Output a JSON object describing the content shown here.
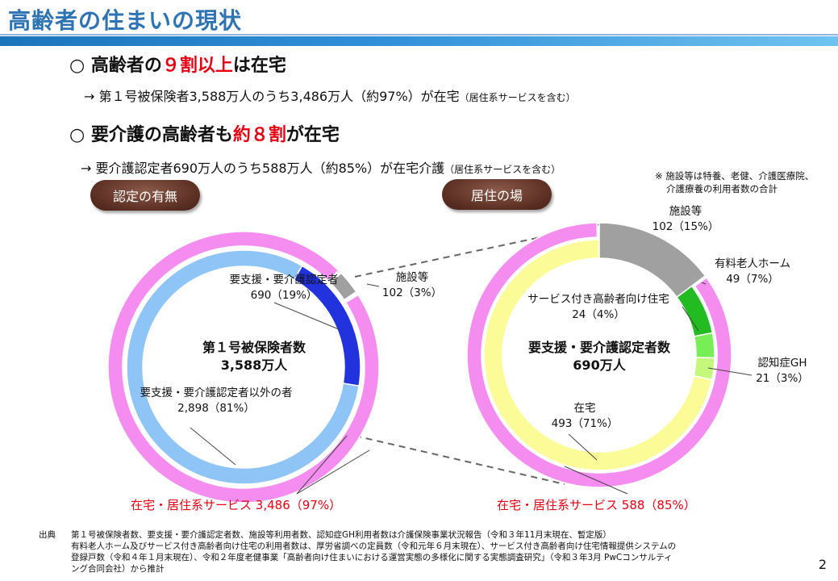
{
  "page": {
    "title": "高齢者の住まいの現状",
    "page_number": "2"
  },
  "point1": {
    "bullet": "○",
    "heading_pre": "高齢者の",
    "heading_red": "９割以上",
    "heading_post": "は在宅",
    "sub_text": "→ 第１号被保険者3,588万人のうち3,486万人（約97%）が在宅",
    "sub_note": "（居住系サービスを含む）"
  },
  "point2": {
    "bullet": "○",
    "heading_pre": "要介護の高齢者も",
    "heading_red": "約８割",
    "heading_post": "が在宅",
    "sub_text": "→ 要介護認定者690万人のうち588万人（約85%）が在宅介護",
    "sub_note": "（居住系サービスを含む）"
  },
  "note": {
    "line1": "※ 施設等は特養、老健、介護医療院、",
    "line2": "介護療養の利用者数の合計"
  },
  "pills": {
    "left": "認定の有無",
    "right": "居住の場"
  },
  "chart_data": [
    {
      "type": "pie",
      "center_line1": "第１号被保険者数",
      "center_line2": "3,588万人",
      "inner_ring": [
        {
          "name_label": "要支援・要介護認定者",
          "value_label": "690（19%）",
          "value": 690,
          "percent": 19,
          "color": "#2233dd"
        },
        {
          "name_label": "要支援・要介護認定者以外の者",
          "value_label": "2,898（81%）",
          "value": 2898,
          "percent": 81,
          "color": "#8ec4f6"
        }
      ],
      "outer_ring": [
        {
          "name_label": "施設等",
          "value_label": "102（3%）",
          "value": 102,
          "percent": 3,
          "color": "#a0a0a0"
        },
        {
          "name_label": "在宅・居住系サービス",
          "value_label": "3,486（97%）",
          "value": 3486,
          "percent": 97,
          "color": "#f58cf0"
        }
      ]
    },
    {
      "type": "pie",
      "center_line1": "要支援・要介護認定者数",
      "center_line2": "690万人",
      "inner_ring": [
        {
          "name_label": "施設等",
          "value_label": "102（15%）",
          "value": 102,
          "percent": 15,
          "color": "#a0a0a0"
        },
        {
          "name_label": "有料老人ホーム",
          "value_label": "49（7%）",
          "value": 49,
          "percent": 7,
          "color": "#22bb22"
        },
        {
          "name_label": "サービス付き高齢者向け住宅",
          "value_label": "24（4%）",
          "value": 24,
          "percent": 4,
          "color": "#77ee55"
        },
        {
          "name_label": "認知症GH",
          "value_label": "21（3%）",
          "value": 21,
          "percent": 3,
          "color": "#c4f77a"
        },
        {
          "name_label": "在宅",
          "value_label": "493（71%）",
          "value": 493,
          "percent": 71,
          "color": "#fbfb98"
        }
      ],
      "outer_ring": [
        {
          "name_label": "施設等",
          "value": 102,
          "percent": 15,
          "color": "#a0a0a0"
        },
        {
          "name_label": "在宅・居住系サービス",
          "value_label": "588（85%）",
          "value": 588,
          "percent": 85,
          "color": "#f58cf0"
        }
      ]
    }
  ],
  "source": {
    "head": "出典",
    "line1": "第１号被保険者数、要支援・要介護認定者数、施設等利用者数、認知症GH利用者数は介護保険事業状況報告（令和３年11月末現在、暫定版）",
    "line2": "有料老人ホーム及びサービス付き高齢者向け住宅の利用者数は、厚労省調べの定員数（令和元年６月末現在）、サービス付き高齢者向け住宅情報提供システムの",
    "line3": "登録戸数（令和４年１月末現在）、令和２年度老健事業「高齢者向け住まいにおける運営実態の多様化に関する実態調査研究」（令和３年3月 PwCコンサルティ",
    "line4": "ング合同会社）から推計"
  }
}
